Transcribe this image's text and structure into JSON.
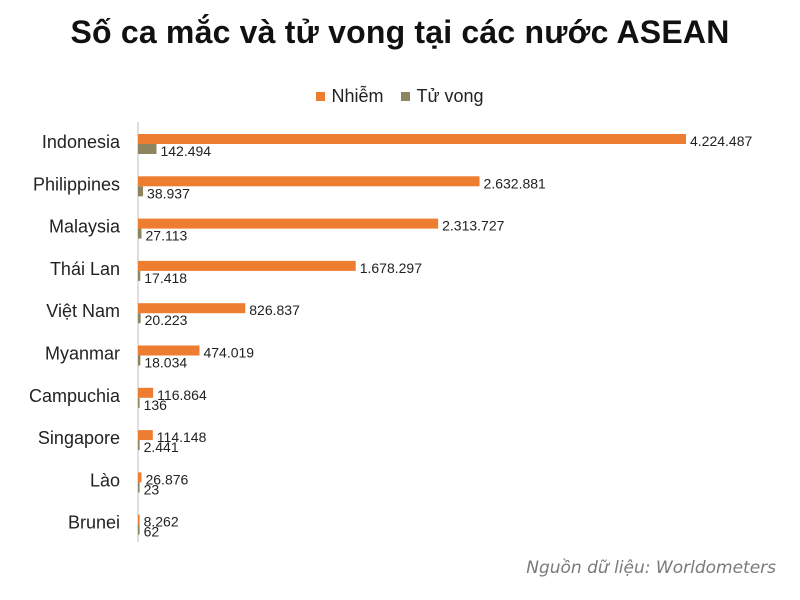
{
  "chart_data": {
    "type": "bar",
    "orientation": "horizontal",
    "title": "Số ca mắc và tử vong tại các nước ASEAN",
    "categories": [
      "Indonesia",
      "Philippines",
      "Malaysia",
      "Thái Lan",
      "Việt Nam",
      "Myanmar",
      "Campuchia",
      "Singapore",
      "Lào",
      "Brunei"
    ],
    "series": [
      {
        "name": "Nhiễm",
        "color": "#ed7d31",
        "values": [
          4224487,
          2632881,
          2313727,
          1678297,
          826837,
          474019,
          116864,
          114148,
          26876,
          8262
        ],
        "labels": [
          "4.224.487",
          "2.632.881",
          "2.313.727",
          "1.678.297",
          "826.837",
          "474.019",
          "116.864",
          "114.148",
          "26.876",
          "8.262"
        ]
      },
      {
        "name": "Tử vong",
        "color": "#8c8560",
        "values": [
          142494,
          38937,
          27113,
          17418,
          20223,
          18034,
          136,
          2441,
          23,
          62
        ],
        "labels": [
          "142.494",
          "38.937",
          "27.113",
          "17.418",
          "20.223",
          "18.034",
          "136",
          "2.441",
          "23",
          "62"
        ]
      }
    ],
    "legend": "top",
    "grid": false
  },
  "source": "Nguồn dữ liệu: Worldometers"
}
